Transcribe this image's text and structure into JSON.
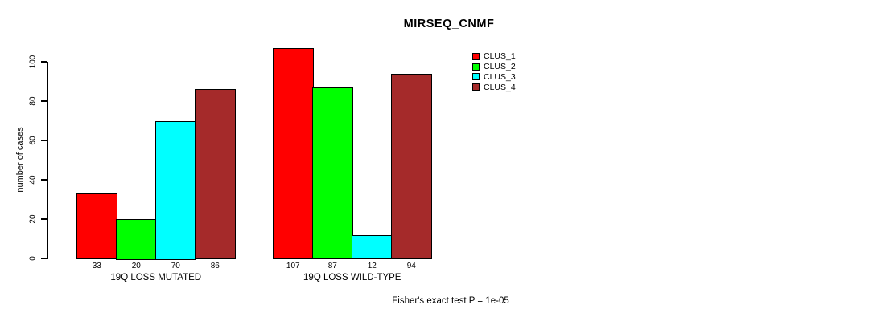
{
  "chart_data": {
    "type": "bar",
    "title": "MIRSEQ_CNMF",
    "ylabel": "number of cases",
    "xlabel": "",
    "ylim": [
      0,
      100
    ],
    "yticks": [
      0,
      20,
      40,
      60,
      80,
      100
    ],
    "grid": false,
    "legend_position": "top-right",
    "categories": [
      "19Q LOSS MUTATED",
      "19Q LOSS WILD-TYPE"
    ],
    "series": [
      {
        "name": "CLUS_1",
        "color": "#FF0000",
        "values": [
          33,
          107
        ]
      },
      {
        "name": "CLUS_2",
        "color": "#00FF00",
        "values": [
          20,
          87
        ]
      },
      {
        "name": "CLUS_3",
        "color": "#00FFFF",
        "values": [
          70,
          12
        ]
      },
      {
        "name": "CLUS_4",
        "color": "#A52A2A",
        "values": [
          86,
          94
        ]
      }
    ],
    "bar_value_labels": [
      [
        33,
        20,
        70,
        86
      ],
      [
        107,
        87,
        12,
        94
      ]
    ],
    "annotation": "Fisher's exact test P = 1e-05"
  }
}
